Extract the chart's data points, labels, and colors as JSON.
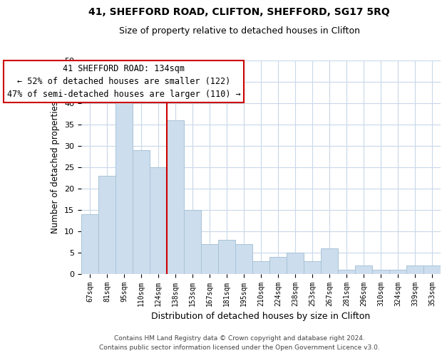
{
  "title": "41, SHEFFORD ROAD, CLIFTON, SHEFFORD, SG17 5RQ",
  "subtitle": "Size of property relative to detached houses in Clifton",
  "xlabel": "Distribution of detached houses by size in Clifton",
  "ylabel": "Number of detached properties",
  "bar_color": "#ccdded",
  "bar_edge_color": "#a8c4d8",
  "categories": [
    "67sqm",
    "81sqm",
    "95sqm",
    "110sqm",
    "124sqm",
    "138sqm",
    "153sqm",
    "167sqm",
    "181sqm",
    "195sqm",
    "210sqm",
    "224sqm",
    "238sqm",
    "253sqm",
    "267sqm",
    "281sqm",
    "296sqm",
    "310sqm",
    "324sqm",
    "339sqm",
    "353sqm"
  ],
  "values": [
    14,
    23,
    41,
    29,
    25,
    36,
    15,
    7,
    8,
    7,
    3,
    4,
    5,
    3,
    6,
    1,
    2,
    1,
    1,
    2,
    2
  ],
  "ylim": [
    0,
    50
  ],
  "yticks": [
    0,
    5,
    10,
    15,
    20,
    25,
    30,
    35,
    40,
    45,
    50
  ],
  "vline_color": "#cc0000",
  "annotation_title": "41 SHEFFORD ROAD: 134sqm",
  "annotation_line1": "← 52% of detached houses are smaller (122)",
  "annotation_line2": "47% of semi-detached houses are larger (110) →",
  "annotation_box_color": "#ffffff",
  "annotation_box_edge": "#cc0000",
  "footer1": "Contains HM Land Registry data © Crown copyright and database right 2024.",
  "footer2": "Contains public sector information licensed under the Open Government Licence v3.0.",
  "bg_color": "#ffffff",
  "grid_color": "#c8d8e8"
}
